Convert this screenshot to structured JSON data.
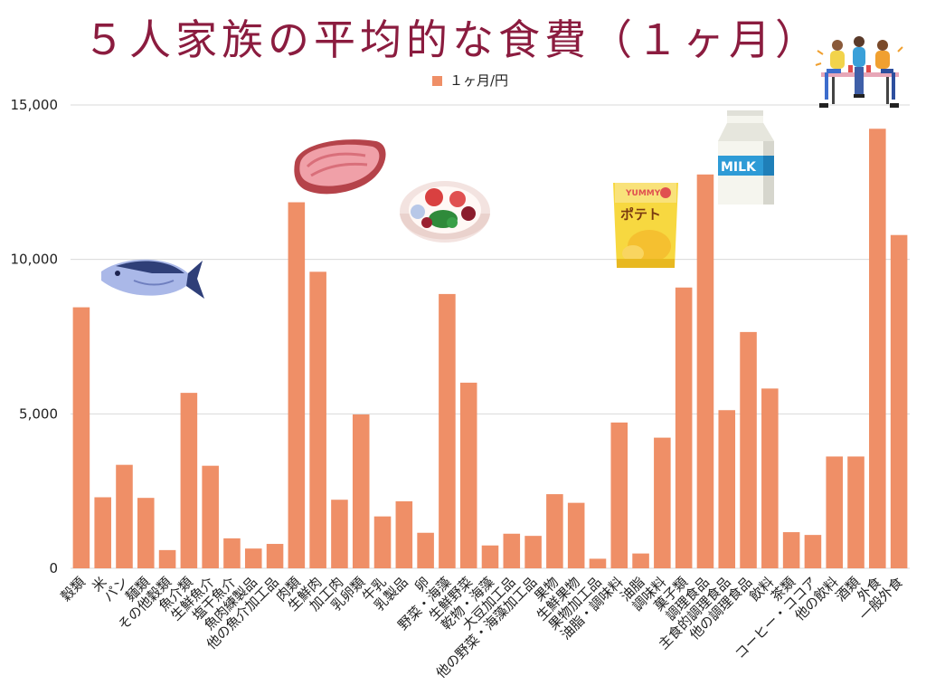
{
  "chart_data": {
    "type": "bar",
    "title": "５人家族の平均的な食費（１ヶ月）",
    "legend": [
      "１ヶ月/円"
    ],
    "ylim": [
      0,
      15000
    ],
    "yticks": [
      0,
      5000,
      10000,
      15000
    ],
    "ytick_labels": [
      "0",
      "5,000",
      "10,000",
      "15,000"
    ],
    "grid": true,
    "legend_position": "top-center",
    "bar_color": "#ef8f67",
    "categories": [
      "穀類",
      "米",
      "パン",
      "麺類",
      "その他穀類",
      "魚介類",
      "生鮮魚介",
      "塩干魚介",
      "魚肉練製品",
      "他の魚介加工品",
      "肉類",
      "生鮮肉",
      "加工肉",
      "乳卵類",
      "牛乳",
      "乳製品",
      "卵",
      "野菜・海藻",
      "生鮮野菜",
      "乾物・海藻",
      "大豆加工品",
      "他の野菜・海藻加工品",
      "果物",
      "生鮮果物",
      "果物加工品",
      "油脂・調味料",
      "油脂",
      "調味料",
      "菓子類",
      "調理食品",
      "主食的調理食品",
      "他の調理食品",
      "飲料",
      "茶類",
      "コーヒー・ココア",
      "他の飲料",
      "酒類",
      "外食",
      "一般外食"
    ],
    "series": [
      {
        "name": "１ヶ月/円",
        "values": [
          8450,
          2300,
          3350,
          2280,
          590,
          5680,
          3320,
          970,
          640,
          790,
          11850,
          9600,
          2220,
          4980,
          1680,
          2170,
          1150,
          8880,
          6010,
          740,
          1120,
          1050,
          2400,
          2120,
          310,
          4720,
          480,
          4230,
          9090,
          12750,
          5120,
          7650,
          5820,
          1170,
          1080,
          3620,
          3620,
          14230,
          10790
        ]
      }
    ]
  },
  "decorations": [
    "family-dining-illustration",
    "fish-icon",
    "steak-icon",
    "salad-bowl-icon",
    "potato-chips-icon",
    "milk-carton-icon"
  ],
  "milk_label": "MILK",
  "chips_brand": "YUMMY",
  "chips_name": "ポテト"
}
